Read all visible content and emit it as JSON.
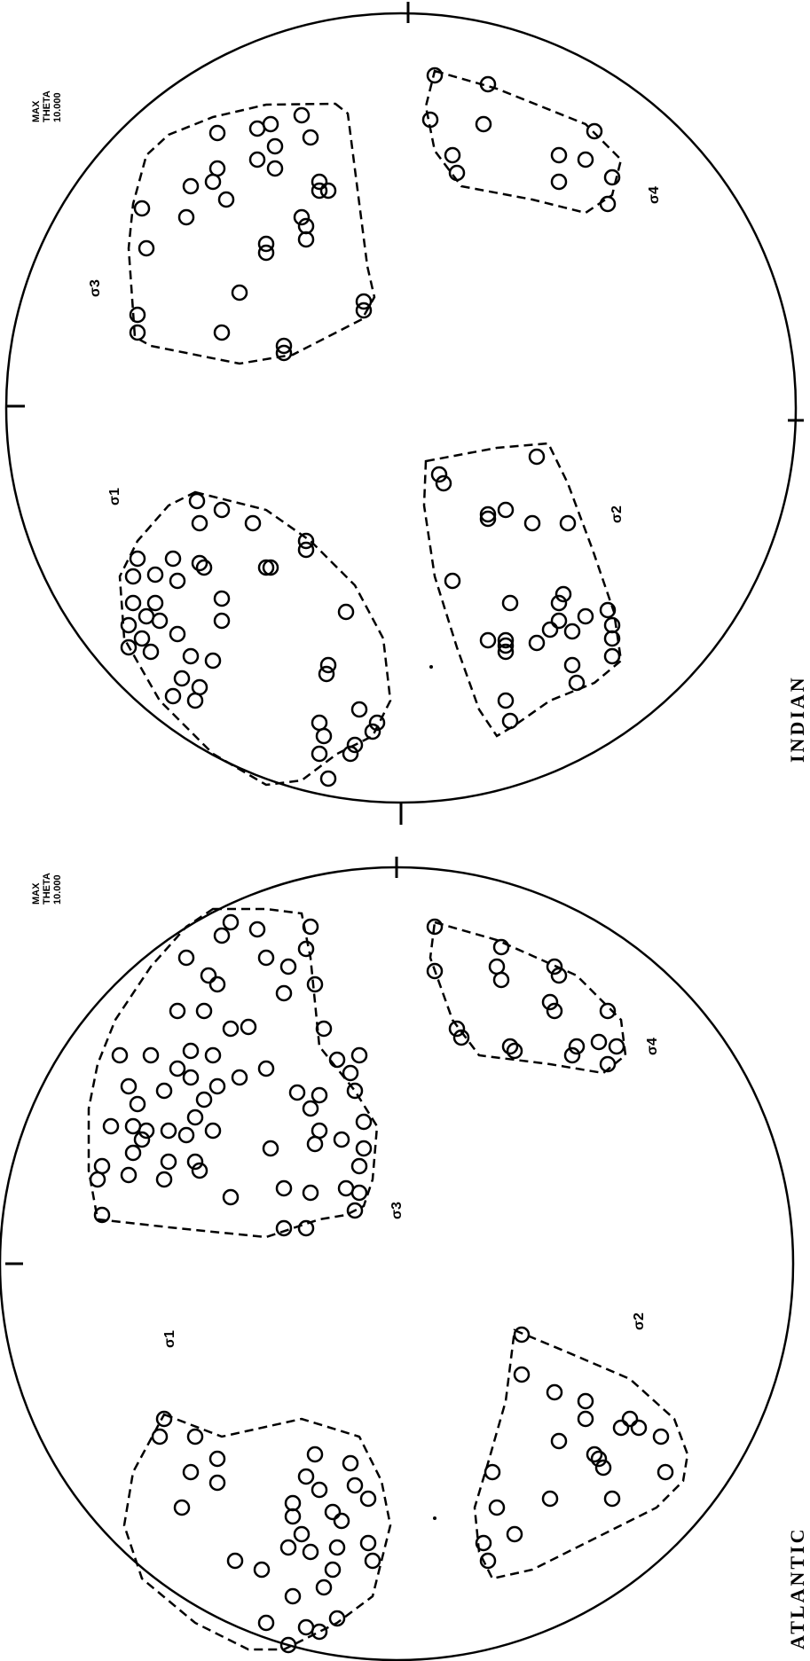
{
  "panels": [
    {
      "id": "atlantic",
      "ocean_label": "ATLANTIC",
      "max_lines": [
        "MAX",
        "THETA",
        "10.000"
      ],
      "sigma_labels": [
        "σ1",
        "σ2",
        "σ3",
        "σ4"
      ]
    },
    {
      "id": "indian",
      "ocean_label": "INDIAN",
      "max_lines": [
        "MAX",
        "THETA",
        "10.000"
      ],
      "sigma_labels": [
        "σ1",
        "σ2",
        "σ3",
        "σ4"
      ]
    }
  ]
}
